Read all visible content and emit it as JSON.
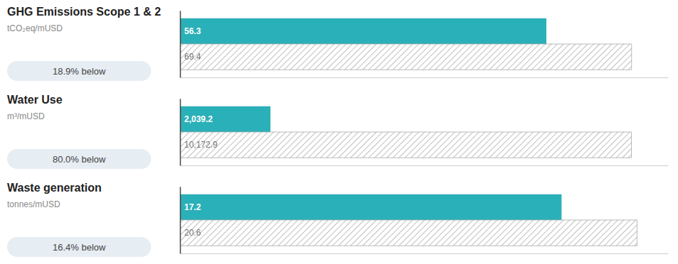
{
  "chart_data": [
    {
      "type": "bar",
      "orientation": "horizontal",
      "title": "GHG Emissions Scope 1 & 2",
      "subtitle": "tCO₂eq/mUSD",
      "annotations": [
        "18.9% below"
      ],
      "categories": [
        null,
        null
      ],
      "values": [
        56.3,
        69.4
      ],
      "value_labels": [
        "56.3",
        "69.4"
      ],
      "colors": [
        "#2ab0b8",
        "#aaaaaa"
      ],
      "xlim": [
        0,
        75
      ],
      "xticks": [],
      "data_labels": true,
      "tick_labels": false,
      "grid": false
    },
    {
      "type": "bar",
      "orientation": "horizontal",
      "title": "Water Use",
      "subtitle": "m³/mUSD",
      "annotations": [
        "80.0% below"
      ],
      "categories": [
        null,
        null
      ],
      "values": [
        2039.2,
        10172.9
      ],
      "value_labels": [
        "2,039.2",
        "10,172.9"
      ],
      "colors": [
        "#2ab0b8",
        "#aaaaaa"
      ],
      "xlim": [
        0,
        11000
      ],
      "xticks": [],
      "data_labels": true,
      "tick_labels": false,
      "grid": false
    },
    {
      "type": "bar",
      "orientation": "horizontal",
      "title": "Waste generation",
      "subtitle": "tonnes/mUSD",
      "annotations": [
        "16.4% below"
      ],
      "categories": [
        null,
        null
      ],
      "values": [
        17.2,
        20.6
      ],
      "value_labels": [
        "17.2",
        "20.6"
      ],
      "colors": [
        "#2ab0b8",
        "#aaaaaa"
      ],
      "xlim": [
        0,
        22
      ],
      "xticks": [],
      "data_labels": true,
      "tick_labels": false,
      "grid": false
    }
  ]
}
